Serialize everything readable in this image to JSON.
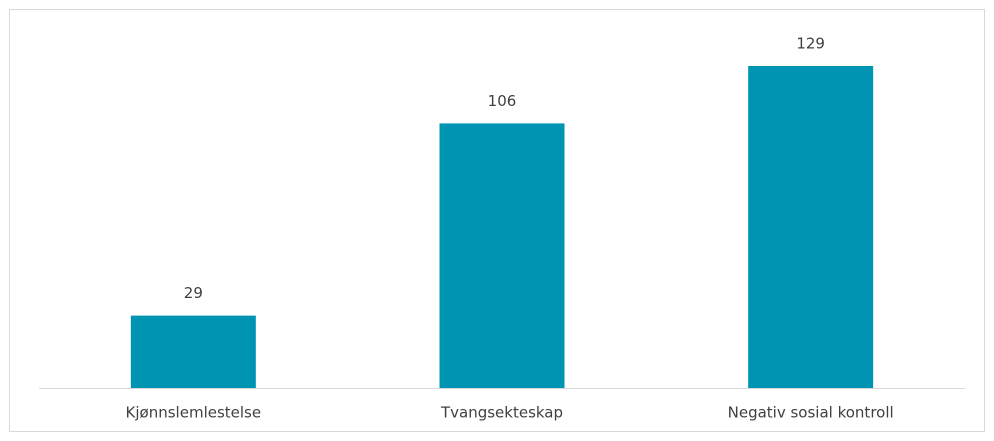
{
  "chart_data": {
    "type": "bar",
    "categories": [
      "Kjønnslemlestelse",
      "Tvangsekteskap",
      "Negativ sosial kontroll"
    ],
    "values": [
      29,
      106,
      129
    ],
    "color": "#0094b3"
  }
}
